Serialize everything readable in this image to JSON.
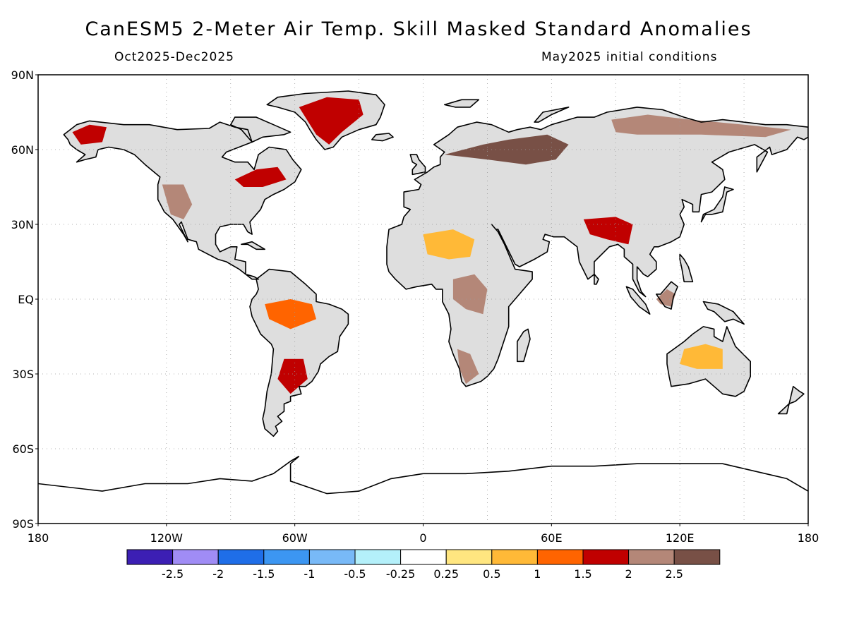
{
  "header": {
    "title": "CanESM5 2-Meter Air Temp. Skill Masked Standard Anomalies",
    "period": "Oct2025-Dec2025",
    "init": "May2025 initial conditions"
  },
  "axes": {
    "lat_labels": [
      {
        "value": 90,
        "text": "90N"
      },
      {
        "value": 60,
        "text": "60N"
      },
      {
        "value": 30,
        "text": "30N"
      },
      {
        "value": 0,
        "text": "EQ"
      },
      {
        "value": -30,
        "text": "30S"
      },
      {
        "value": -60,
        "text": "60S"
      },
      {
        "value": -90,
        "text": "90S"
      }
    ],
    "lon_labels": [
      {
        "value": -180,
        "text": "180"
      },
      {
        "value": -120,
        "text": "120W"
      },
      {
        "value": -60,
        "text": "60W"
      },
      {
        "value": 0,
        "text": "0"
      },
      {
        "value": 60,
        "text": "60E"
      },
      {
        "value": 120,
        "text": "120E"
      },
      {
        "value": 180,
        "text": "180"
      }
    ],
    "gridlines": "dotted, every 30 degrees"
  },
  "colorbar": {
    "colors": [
      "#3c1fb4",
      "#a08cf5",
      "#1f6ee8",
      "#3c96f2",
      "#78b9f7",
      "#b4f0fa",
      "#ffffff",
      "#ffe680",
      "#ffb937",
      "#ff6400",
      "#c00000",
      "#b48778",
      "#785046"
    ],
    "labels": [
      "-2.5",
      "-2",
      "-1.5",
      "-1",
      "-0.5",
      "-0.25",
      "0.25",
      "0.5",
      "1",
      "1.5",
      "2",
      "2.5"
    ]
  },
  "map": {
    "land_no_skill_color": "#dedede",
    "anomaly_regions": [
      {
        "name": "Alaska",
        "level": "1.5"
      },
      {
        "name": "Greenland",
        "level": "1.5"
      },
      {
        "name": "Northern Siberia",
        "level": "2"
      },
      {
        "name": "Western Russia",
        "level": "2.5"
      },
      {
        "name": "Saharan Africa",
        "level": "0.5"
      },
      {
        "name": "Central Africa",
        "level": "2"
      },
      {
        "name": "Southern Africa",
        "level": "2"
      },
      {
        "name": "Amazon Basin",
        "level": "1"
      },
      {
        "name": "Southern South America",
        "level": "1.5"
      },
      {
        "name": "South Asia",
        "level": "1.5"
      },
      {
        "name": "Maritime Continent",
        "level": "2"
      },
      {
        "name": "Australia",
        "level": "0.5"
      },
      {
        "name": "Eastern Canada",
        "level": "1.5"
      },
      {
        "name": "Western US",
        "level": "2"
      }
    ]
  }
}
